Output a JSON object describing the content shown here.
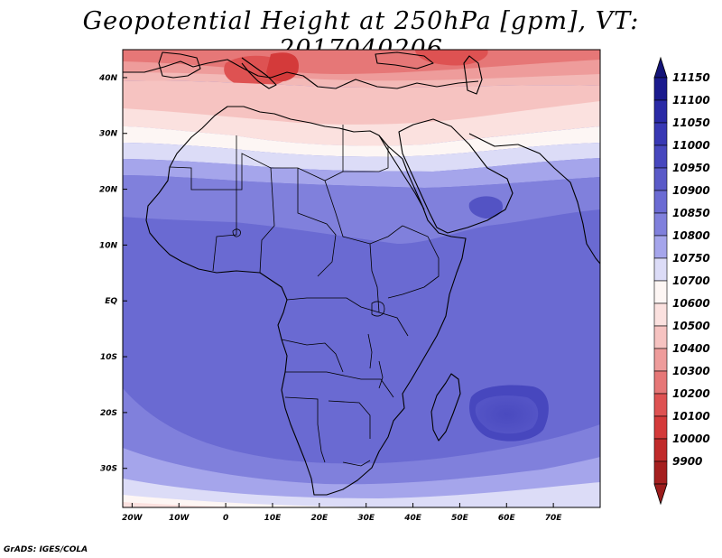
{
  "title": "Geopotential Height at 250hPa [gpm], VT: 2017040206",
  "credit": "GrADS: IGES/COLA",
  "map": {
    "region": "Africa",
    "lon_range": [
      -22,
      80
    ],
    "lat_range": [
      -37,
      45
    ]
  },
  "lon_ticks": [
    {
      "value": -20,
      "label": "20W"
    },
    {
      "value": -10,
      "label": "10W"
    },
    {
      "value": 0,
      "label": "0"
    },
    {
      "value": 10,
      "label": "10E"
    },
    {
      "value": 20,
      "label": "20E"
    },
    {
      "value": 30,
      "label": "30E"
    },
    {
      "value": 40,
      "label": "40E"
    },
    {
      "value": 50,
      "label": "50E"
    },
    {
      "value": 60,
      "label": "60E"
    },
    {
      "value": 70,
      "label": "70E"
    }
  ],
  "lat_ticks": [
    {
      "value": 40,
      "label": "40N"
    },
    {
      "value": 30,
      "label": "30N"
    },
    {
      "value": 20,
      "label": "20N"
    },
    {
      "value": 10,
      "label": "10N"
    },
    {
      "value": 0,
      "label": "EQ"
    },
    {
      "value": -10,
      "label": "10S"
    },
    {
      "value": -20,
      "label": "20S"
    },
    {
      "value": -30,
      "label": "30S"
    }
  ],
  "colorbar": {
    "levels": [
      {
        "label": "11150",
        "color": "#1a1a8e"
      },
      {
        "label": "11100",
        "color": "#2a2aa6"
      },
      {
        "label": "11050",
        "color": "#3838b4"
      },
      {
        "label": "11000",
        "color": "#4747be"
      },
      {
        "label": "10950",
        "color": "#5a5ac8"
      },
      {
        "label": "10900",
        "color": "#6b6bd3"
      },
      {
        "label": "10850",
        "color": "#8080dc"
      },
      {
        "label": "10800",
        "color": "#a5a5eb"
      },
      {
        "label": "10750",
        "color": "#dcdcf7"
      },
      {
        "label": "10700",
        "color": "#fdf6f4"
      },
      {
        "label": "10600",
        "color": "#fbe1df"
      },
      {
        "label": "10500",
        "color": "#f6c3c1"
      },
      {
        "label": "10400",
        "color": "#ee9c9b"
      },
      {
        "label": "10300",
        "color": "#e67777"
      },
      {
        "label": "10200",
        "color": "#de5252"
      },
      {
        "label": "10100",
        "color": "#d43a3a"
      },
      {
        "label": "10000",
        "color": "#c02a2a"
      },
      {
        "label": "9900",
        "color": "#a51f1f"
      }
    ],
    "top_arrow_color": "#141478",
    "bottom_arrow_color": "#9b1c1c"
  }
}
